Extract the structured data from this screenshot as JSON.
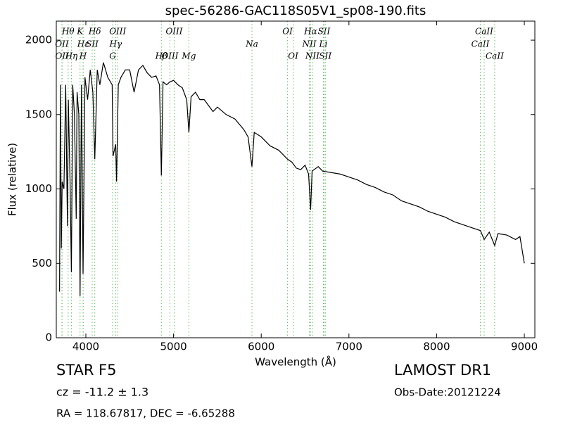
{
  "chart_data": {
    "type": "line",
    "title": "spec-56286-GAC118S05V1_sp08-190.fits",
    "xlabel": "Wavelength (Å)",
    "ylabel": "Flux (relative)",
    "xlim": [
      3663,
      9120
    ],
    "ylim": [
      0,
      2128
    ],
    "xticks": [
      4000,
      5000,
      6000,
      7000,
      8000,
      9000
    ],
    "yticks": [
      0,
      500,
      1000,
      1500,
      2000
    ],
    "line_color": "#000000",
    "marker_color": "#66bb66",
    "x": [
      3700,
      3710,
      3720,
      3730,
      3750,
      3770,
      3790,
      3800,
      3820,
      3835,
      3850,
      3870,
      3890,
      3900,
      3920,
      3934,
      3950,
      3968,
      3990,
      4020,
      4050,
      4080,
      4102,
      4130,
      4160,
      4200,
      4250,
      4300,
      4310,
      4340,
      4350,
      4370,
      4400,
      4450,
      4500,
      4550,
      4600,
      4650,
      4700,
      4750,
      4800,
      4840,
      4861,
      4880,
      4920,
      4960,
      5000,
      5050,
      5100,
      5150,
      5175,
      5200,
      5250,
      5300,
      5350,
      5400,
      5450,
      5500,
      5600,
      5700,
      5800,
      5850,
      5894,
      5920,
      6000,
      6100,
      6200,
      6300,
      6350,
      6400,
      6450,
      6500,
      6540,
      6563,
      6580,
      6650,
      6700,
      6800,
      6900,
      7000,
      7100,
      7200,
      7300,
      7400,
      7500,
      7600,
      7700,
      7800,
      7900,
      8000,
      8100,
      8200,
      8300,
      8400,
      8500,
      8542,
      8600,
      8662,
      8700,
      8800,
      8900,
      8950,
      9000
    ],
    "series": [
      {
        "values": [
          310,
          1700,
          600,
          1050,
          1000,
          1700,
          750,
          1600,
          1050,
          440,
          1700,
          1500,
          800,
          1650,
          1500,
          280,
          1700,
          430,
          1750,
          1600,
          1800,
          1650,
          1200,
          1800,
          1700,
          1850,
          1750,
          1700,
          1220,
          1300,
          1050,
          1700,
          1750,
          1800,
          1800,
          1650,
          1800,
          1830,
          1780,
          1750,
          1760,
          1700,
          1090,
          1720,
          1700,
          1720,
          1730,
          1700,
          1680,
          1600,
          1380,
          1620,
          1650,
          1600,
          1600,
          1560,
          1520,
          1550,
          1500,
          1470,
          1400,
          1350,
          1150,
          1380,
          1350,
          1290,
          1260,
          1200,
          1180,
          1140,
          1130,
          1160,
          1100,
          860,
          1120,
          1150,
          1120,
          1110,
          1100,
          1080,
          1060,
          1030,
          1010,
          980,
          960,
          920,
          900,
          880,
          850,
          830,
          810,
          780,
          760,
          740,
          720,
          660,
          710,
          620,
          700,
          690,
          660,
          680,
          500
        ]
      }
    ],
    "lines": [
      {
        "label": "OII",
        "x": 3727
      },
      {
        "label": "OII",
        "x": 3729
      },
      {
        "label": "Hθ",
        "x": 3798
      },
      {
        "label": "Hη",
        "x": 3835
      },
      {
        "label": "K",
        "x": 3934
      },
      {
        "label": "Hε",
        "x": 3970
      },
      {
        "label": "H",
        "x": 3968
      },
      {
        "label": "SII",
        "x": 4072
      },
      {
        "label": "Hδ",
        "x": 4102
      },
      {
        "label": "G",
        "x": 4305
      },
      {
        "label": "Hγ",
        "x": 4340
      },
      {
        "label": "OIII",
        "x": 4363
      },
      {
        "label": "Hβ",
        "x": 4861
      },
      {
        "label": "OIII",
        "x": 4959
      },
      {
        "label": "OIII",
        "x": 5007
      },
      {
        "label": "Mg",
        "x": 5175
      },
      {
        "label": "Na",
        "x": 5894
      },
      {
        "label": "OI",
        "x": 6300
      },
      {
        "label": "OI",
        "x": 6364
      },
      {
        "label": "NII",
        "x": 6548
      },
      {
        "label": "Hα",
        "x": 6563
      },
      {
        "label": "NII",
        "x": 6583
      },
      {
        "label": "Li",
        "x": 6708
      },
      {
        "label": "SII",
        "x": 6716
      },
      {
        "label": "SII",
        "x": 6731
      },
      {
        "label": "CaII",
        "x": 8498
      },
      {
        "label": "CaII",
        "x": 8542
      },
      {
        "label": "CaII",
        "x": 8662
      }
    ]
  },
  "info": {
    "class": "STAR",
    "subclass": "F5",
    "cz": "cz = -11.2 ± 1.3",
    "radec": "RA = 118.67817, DEC = -6.65288",
    "survey": "LAMOST DR1",
    "date": "Obs-Date:20121224"
  }
}
